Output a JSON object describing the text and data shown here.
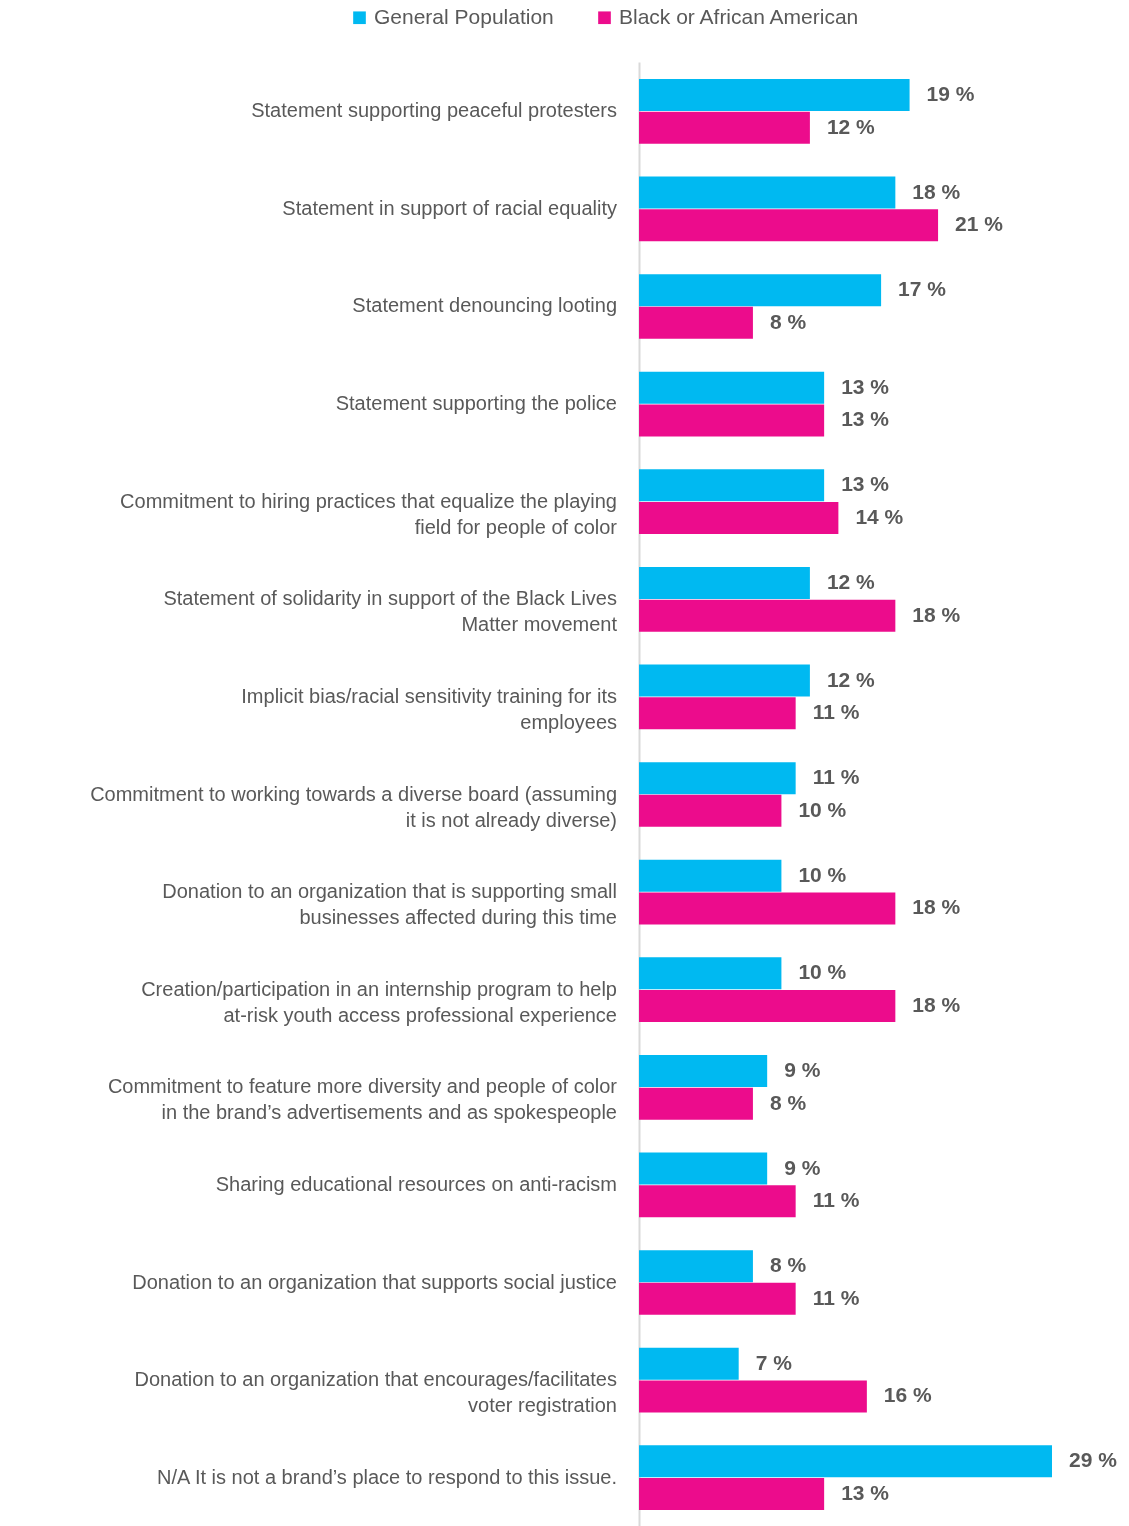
{
  "chart_data": {
    "type": "bar",
    "orientation": "horizontal",
    "legend": "top",
    "categories": [
      "Statement supporting peaceful protesters",
      "Statement in support of racial equality",
      "Statement denouncing looting",
      "Statement supporting the police",
      "Commitment to hiring practices that equalize the playing field for people of color",
      "Statement of solidarity in support of the Black Lives Matter movement",
      "Implicit bias/racial sensitivity training for its employees",
      "Commitment to working towards a diverse board (assuming it is not already diverse)",
      "Donation to an organization that is supporting small businesses affected during this time",
      "Creation/participation in an internship program to help at-risk youth access professional experience",
      "Commitment to feature more diversity and people of color in the brand’s advertisements and as spokespeople",
      "Sharing educational resources on anti-racism",
      "Donation to an organization that supports social justice",
      "Donation to an organization that encourages/facilitates voter registration",
      "N/A It is not a brand’s place to respond to this issue."
    ],
    "series": [
      {
        "name": "General Population",
        "color": "#00b9f1",
        "values": [
          19,
          18,
          17,
          13,
          13,
          12,
          12,
          11,
          10,
          10,
          9,
          9,
          8,
          7,
          29
        ],
        "value_labels": [
          "19 %",
          "18 %",
          "17 %",
          "13 %",
          "13 %",
          "12 %",
          "12 %",
          "11 %",
          "10 %",
          "10 %",
          "9 %",
          "9 %",
          "8 %",
          "7 %",
          "29 %"
        ]
      },
      {
        "name": "Black or African American",
        "color": "#ec0c8c",
        "values": [
          12,
          21,
          8,
          13,
          14,
          18,
          11,
          10,
          18,
          18,
          8,
          11,
          11,
          16,
          13
        ],
        "value_labels": [
          "12 %",
          "21 %",
          "8 %",
          "13 %",
          "14 %",
          "18 %",
          "11 %",
          "10 %",
          "18 %",
          "18 %",
          "8 %",
          "11 %",
          "11 %",
          "16 %",
          "13 %"
        ]
      }
    ]
  }
}
